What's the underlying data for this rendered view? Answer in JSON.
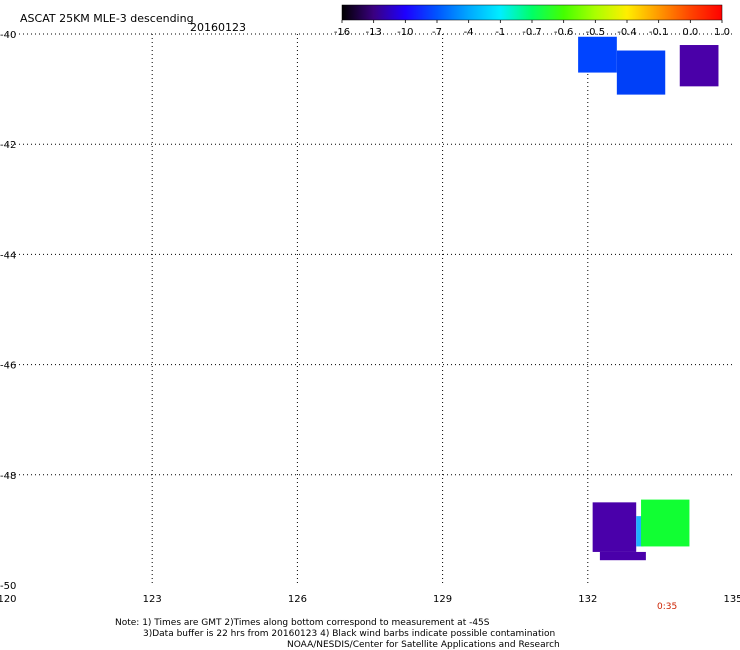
{
  "chart_data": {
    "type": "heatmap",
    "title": "ASCAT 25KM MLE-3 descending",
    "date": "20160123",
    "colorbar": {
      "tick_labels": [
        "-16",
        "-13",
        "-10",
        "-7",
        "-4",
        "-1",
        "-0.7",
        "-0.6",
        "-0.5",
        "-0.4",
        "-0.1",
        "0.0",
        "1.0"
      ],
      "colors": [
        "#000000",
        "#3a0080",
        "#1e00ff",
        "#0055ff",
        "#00a8ff",
        "#00eeff",
        "#00ff66",
        "#44ff00",
        "#aaff00",
        "#ffee00",
        "#ff9900",
        "#ff4400",
        "#ff0000"
      ]
    },
    "x_axis": {
      "range": [
        120,
        135
      ],
      "ticks": [
        120,
        123,
        126,
        129,
        132,
        135
      ],
      "tick_labels": [
        "120",
        "123",
        "126",
        "129",
        "132",
        "135"
      ]
    },
    "y_axis": {
      "range": [
        -50,
        -40
      ],
      "ticks": [
        -40,
        -42,
        -44,
        -46,
        -48,
        -50
      ],
      "tick_labels": [
        "-40",
        "-42",
        "-44",
        "-46",
        "-48",
        "-50"
      ]
    },
    "grid": true,
    "cells": [
      {
        "lon_min": 131.8,
        "lon_max": 132.6,
        "lat_min": -40.7,
        "lat_max": -40.05,
        "color": "#0044ff"
      },
      {
        "lon_min": 132.6,
        "lon_max": 133.6,
        "lat_min": -41.1,
        "lat_max": -40.3,
        "color": "#0040f8"
      },
      {
        "lon_min": 133.9,
        "lon_max": 134.7,
        "lat_min": -40.95,
        "lat_max": -40.2,
        "color": "#4a00a8"
      },
      {
        "lon_min": 132.1,
        "lon_max": 133.0,
        "lat_min": -49.4,
        "lat_max": -48.5,
        "color": "#4a00aa"
      },
      {
        "lon_min": 132.25,
        "lon_max": 133.2,
        "lat_min": -49.55,
        "lat_max": -49.4,
        "color": "#4a00aa"
      },
      {
        "lon_min": 133.0,
        "lon_max": 133.15,
        "lat_min": -49.3,
        "lat_max": -48.75,
        "color": "#20b0ff"
      },
      {
        "lon_min": 133.1,
        "lon_max": 134.1,
        "lat_min": -49.3,
        "lat_max": -48.45,
        "color": "#11ff33"
      }
    ],
    "time_label": {
      "text": "0:35"
    },
    "notes": [
      "Note: 1) Times are GMT 2)Times along bottom correspond to measurement at -45S",
      "3)Data buffer is 22 hrs from 20160123 4) Black wind barbs indicate possible contamination",
      "NOAA/NESDIS/Center for Satellite Applications and Research"
    ]
  }
}
